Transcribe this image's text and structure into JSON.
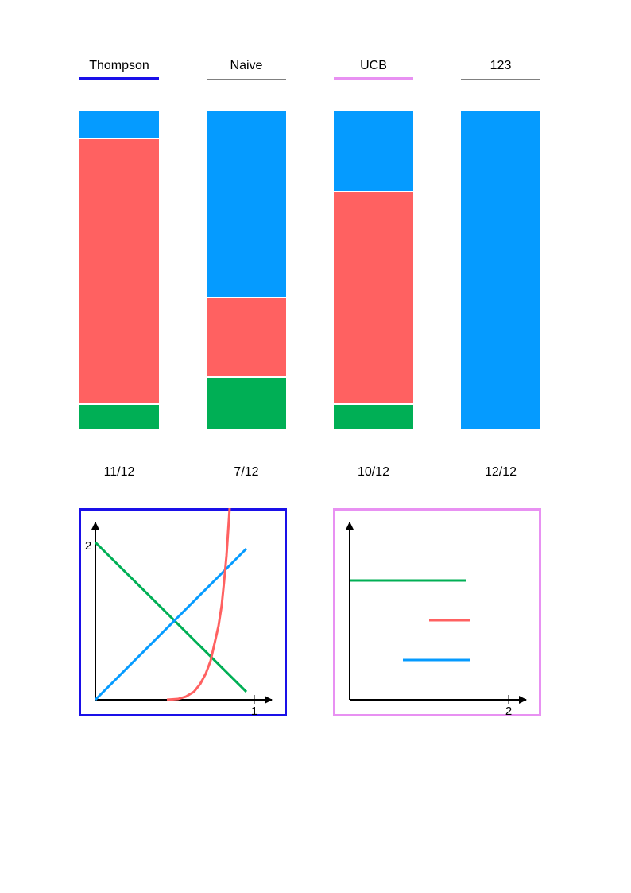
{
  "columns": [
    {
      "title": "Thompson",
      "underline_color": "#1a10e8",
      "underline_thick": true,
      "score": "11/12",
      "segments": [
        {
          "name": "blue",
          "frac": 0.0825
        },
        {
          "name": "red",
          "frac": 0.835
        },
        {
          "name": "green",
          "frac": 0.0825
        }
      ]
    },
    {
      "title": "Naive",
      "underline_color": "#808080",
      "underline_thick": false,
      "score": "7/12",
      "segments": [
        {
          "name": "blue",
          "frac": 0.5825
        },
        {
          "name": "red",
          "frac": 0.25
        },
        {
          "name": "green",
          "frac": 0.1675
        }
      ]
    },
    {
      "title": "UCB",
      "underline_color": "#e891f2",
      "underline_thick": true,
      "score": "10/12",
      "segments": [
        {
          "name": "blue",
          "frac": 0.25
        },
        {
          "name": "red",
          "frac": 0.6675
        },
        {
          "name": "green",
          "frac": 0.0825
        }
      ]
    },
    {
      "title": "123",
      "underline_color": "#808080",
      "underline_thick": false,
      "score": "12/12",
      "segments": [
        {
          "name": "blue",
          "frac": 1.0
        }
      ]
    }
  ],
  "colors": {
    "blue": "#059bff",
    "red": "#ff6161",
    "green": "#00af55"
  },
  "panels": {
    "left": {
      "border_color": "#1a10e8",
      "x_tick": "1",
      "y_tick": "2"
    },
    "right": {
      "border_color": "#e891f2",
      "x_tick": "2"
    }
  }
}
